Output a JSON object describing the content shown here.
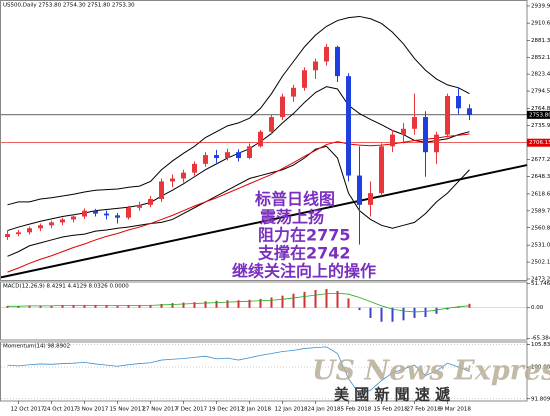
{
  "chart_data": [
    {
      "type": "candlestick",
      "title": "US500,Daily  2753.80 2754.30 2751.80 2753.30",
      "ylim": [
        2471.5,
        2948.4
      ],
      "yticks": [
        {
          "value": 2939.9,
          "label": "2939.90"
        },
        {
          "value": 2910.6,
          "label": "2910.60"
        },
        {
          "value": 2881.3,
          "label": "2881.30"
        },
        2852.15,
        {
          "value": 2823.45,
          "label": "2823.45"
        },
        {
          "value": 2794.5,
          "label": "2794.50"
        },
        {
          "value": 2764.8,
          "label": "2764.80"
        },
        {
          "value": 2735.9,
          "label": "2735.90"
        },
        {
          "value": 2677.2,
          "label": "2677.20"
        },
        2648.35,
        2618.65,
        {
          "value": 2589.7,
          "label": "2589.70"
        },
        {
          "value": 2560.8,
          "label": "2560.80"
        },
        2531.05,
        2502.15,
        2473.25
      ],
      "up_color": "#e8363a",
      "down_color": "#1f3fe0",
      "open": [
        2545,
        2550,
        2553,
        2560,
        2565,
        2570,
        2575,
        2580,
        2590,
        2585,
        2582,
        2578,
        2595,
        2600,
        2610,
        2640,
        2645,
        2655,
        2670,
        2685,
        2680,
        2690,
        2680,
        2700,
        2725,
        2750,
        2785,
        2800,
        2830,
        2845,
        2870,
        2820,
        2650,
        2600,
        2620,
        2700,
        2720,
        2730,
        2750,
        2690,
        2720,
        2786,
        2765
      ],
      "high": [
        2556,
        2557,
        2563,
        2568,
        2573,
        2578,
        2584,
        2594,
        2593,
        2590,
        2586,
        2598,
        2605,
        2615,
        2645,
        2652,
        2660,
        2674,
        2690,
        2694,
        2696,
        2695,
        2705,
        2728,
        2755,
        2790,
        2805,
        2835,
        2850,
        2875,
        2872,
        2825,
        2700,
        2640,
        2705,
        2728,
        2740,
        2790,
        2760,
        2725,
        2790,
        2800,
        2772
      ],
      "low": [
        2540,
        2546,
        2549,
        2555,
        2560,
        2565,
        2570,
        2576,
        2580,
        2575,
        2568,
        2575,
        2590,
        2596,
        2605,
        2630,
        2638,
        2650,
        2665,
        2672,
        2676,
        2674,
        2678,
        2698,
        2720,
        2745,
        2776,
        2795,
        2815,
        2838,
        2810,
        2640,
        2532,
        2580,
        2615,
        2690,
        2705,
        2720,
        2648,
        2670,
        2715,
        2755,
        2745
      ],
      "close": [
        2550,
        2553,
        2560,
        2565,
        2570,
        2575,
        2580,
        2590,
        2585,
        2582,
        2578,
        2595,
        2600,
        2610,
        2640,
        2645,
        2655,
        2670,
        2685,
        2680,
        2690,
        2680,
        2700,
        2725,
        2750,
        2785,
        2800,
        2830,
        2845,
        2870,
        2820,
        2650,
        2600,
        2620,
        2700,
        2720,
        2730,
        2750,
        2690,
        2720,
        2786,
        2765,
        2753.8
      ],
      "series": [
        {
          "color": "#000000",
          "values": [
            2600,
            2605,
            2605,
            2610,
            2612,
            2615,
            2618,
            2622,
            2625,
            2626,
            2627,
            2630,
            2632,
            2640,
            2660,
            2675,
            2688,
            2700,
            2715,
            2725,
            2735,
            2740,
            2748,
            2765,
            2790,
            2820,
            2845,
            2870,
            2890,
            2905,
            2915,
            2920,
            2922,
            2918,
            2910,
            2895,
            2875,
            2850,
            2830,
            2815,
            2805,
            2800,
            2790
          ]
        },
        {
          "color": "#000000",
          "values": [
            2556,
            2562,
            2567,
            2572,
            2576,
            2580,
            2583,
            2586,
            2590,
            2592,
            2594,
            2596,
            2599,
            2604,
            2615,
            2625,
            2636,
            2648,
            2660,
            2670,
            2680,
            2688,
            2696,
            2708,
            2722,
            2740,
            2756,
            2775,
            2792,
            2802,
            2798,
            2770,
            2756,
            2746,
            2737,
            2727,
            2720,
            2710,
            2707,
            2710,
            2713,
            2720,
            2725
          ]
        },
        {
          "color": "#000000",
          "values": [
            2512,
            2520,
            2530,
            2535,
            2540,
            2545,
            2548,
            2550,
            2555,
            2557,
            2560,
            2562,
            2565,
            2568,
            2570,
            2575,
            2585,
            2595,
            2605,
            2615,
            2625,
            2635,
            2645,
            2650,
            2655,
            2660,
            2668,
            2680,
            2695,
            2700,
            2680,
            2620,
            2590,
            2575,
            2565,
            2560,
            2565,
            2570,
            2585,
            2605,
            2620,
            2640,
            2660
          ]
        },
        {
          "color": "#e00000",
          "values": [
            2485,
            2492,
            2500,
            2507,
            2513,
            2520,
            2527,
            2533,
            2540,
            2546,
            2551,
            2557,
            2562,
            2568,
            2575,
            2582,
            2590,
            2598,
            2605,
            2612,
            2620,
            2628,
            2636,
            2644,
            2652,
            2662,
            2672,
            2683,
            2693,
            2703,
            2708,
            2704,
            2702,
            2701,
            2702,
            2704,
            2707,
            2710,
            2712,
            2714,
            2717,
            2719,
            2721
          ]
        }
      ],
      "price_lines": [
        {
          "value": 2753.8,
          "label": "2753.80",
          "color": "#000000"
        },
        {
          "value": 2706.15,
          "label": "2706.15",
          "color": "#e00000"
        }
      ],
      "trend_line": {
        "start": 2476,
        "end": 2668,
        "color": "#000000"
      },
      "annotations": [
        "标普日线图",
        "震荡上扬",
        "阻力在2775",
        "支撑在2742",
        "继续关注向上的操作"
      ],
      "annotation_color": "#7b2fc0"
    },
    {
      "type": "macd",
      "title": "MACD(12,26,9) 8.4291 4.4129 8.0326 0.0000",
      "ylim": [
        -67,
        53
      ],
      "yticks": [
        51.7464,
        {
          "value": 0,
          "label": "0.00"
        },
        -65.3848
      ],
      "pos_color": "#d03030",
      "neg_color": "#4040d0",
      "values": [
        4,
        4,
        5,
        5,
        5,
        5,
        6,
        6,
        6,
        5,
        4,
        5,
        5,
        6,
        8,
        10,
        11,
        12,
        14,
        15,
        16,
        16,
        17,
        19,
        22,
        26,
        30,
        34,
        38,
        40,
        36,
        20,
        -5,
        -22,
        -30,
        -30,
        -27,
        -22,
        -20,
        -13,
        -4,
        3,
        8.4291
      ],
      "signal": {
        "color": "#22aa22",
        "values": [
          3,
          3,
          4,
          4,
          4,
          5,
          5,
          5,
          5,
          5,
          5,
          5,
          5,
          5,
          6,
          7,
          8,
          9,
          10,
          11,
          12,
          13,
          14,
          15,
          16,
          18,
          21,
          24,
          27,
          30,
          31,
          29,
          22,
          13,
          4,
          -3,
          -7,
          -9,
          -8,
          -5,
          -1,
          2,
          4.4129
        ]
      }
    },
    {
      "type": "line",
      "title": "Momentum(14) 98.8902",
      "ylim": [
        91.5,
        106.2
      ],
      "yticks": [
        105.8348,
        {
          "value": 100,
          "label": "100.00"
        },
        91.8092
      ],
      "color": "#3a8fd0",
      "values": [
        100.5,
        100.3,
        100.6,
        100.8,
        100.7,
        100.9,
        101,
        101.2,
        100.8,
        100.5,
        100.2,
        100.6,
        100.9,
        101.1,
        101.8,
        102,
        102.2,
        102.5,
        102.8,
        102.1,
        102.3,
        101.8,
        102.4,
        103,
        103.5,
        104,
        104.3,
        104.8,
        105,
        105.2,
        103.5,
        97,
        93,
        94,
        96.5,
        98.5,
        99.5,
        100.5,
        97.8,
        99,
        101,
        100,
        98.8902
      ],
      "categories": [
        null,
        "12 Oct 2017",
        null,
        null,
        "24 Oct 2017",
        null,
        null,
        "3 Nov 2017",
        null,
        null,
        "15 Nov 2017",
        null,
        null,
        "27 Nov 2017",
        null,
        null,
        "7 Dec 2017",
        null,
        null,
        "19 Dec 2017",
        null,
        null,
        "2 Jan 2018",
        null,
        null,
        "12 Jan 2018",
        null,
        null,
        "24 Jan 2018",
        null,
        null,
        "5 Feb 2018",
        null,
        null,
        "15 Feb 2018",
        null,
        null,
        "27 Feb 2018",
        null,
        null,
        "9 Mar 2018",
        null,
        null
      ],
      "watermark": [
        "US News Express",
        "美 國 新 聞 速 遞"
      ]
    }
  ]
}
